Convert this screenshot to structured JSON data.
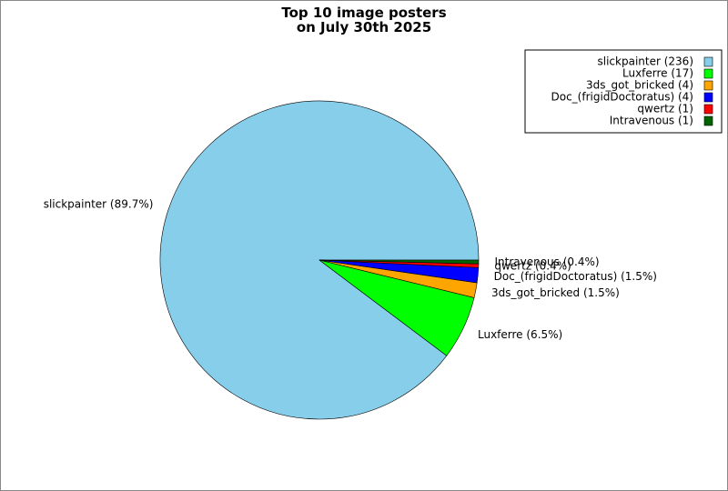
{
  "chart_data": {
    "type": "pie",
    "title": "Top 10 image posters\non July 30th 2025",
    "labels": [
      "slickpainter (236)",
      "Luxferre (17)",
      "3ds_got_bricked (4)",
      "Doc_(frigidDoctoratus) (4)",
      "qwertz (1)",
      "Intravenous (1)"
    ],
    "values": [
      236,
      17,
      4,
      4,
      1,
      1
    ],
    "value_labels": [
      "slickpainter (89.7%)",
      "Luxferre (6.5%)",
      "3ds_got_bricked (1.5%)",
      "Doc_(frigidDoctoratus) (1.5%)",
      "qwertz (0.4%)",
      "Intravenous (0.4%)"
    ],
    "colors": [
      "#87ceeb",
      "#00ff00",
      "#ffa500",
      "#0000ff",
      "#ff0000",
      "#006400"
    ],
    "legend": "upper right"
  }
}
